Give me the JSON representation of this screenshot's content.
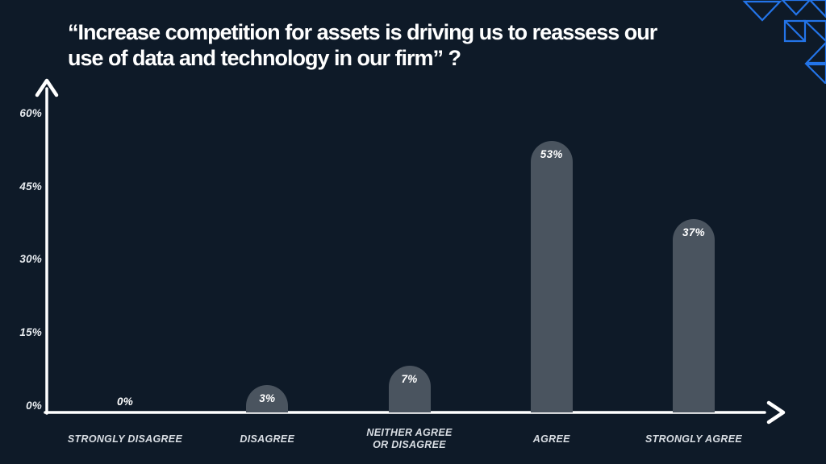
{
  "page": {
    "background_color": "#0e1a28",
    "accent_blue": "#2374e8"
  },
  "header": {
    "title_lines": [
      "“Increase competition for assets is driving us to reassess our",
      "use of data and technology in our firm” ?"
    ]
  },
  "decoration": {
    "description": "blue outlined triangle mosaic, top-right corner",
    "color": "#2374e8"
  },
  "chart_data": {
    "type": "bar",
    "title": "“Increase competition for assets is driving us to reassess our use of data and technology in our firm” ?",
    "categories": [
      "STRONGLY DISAGREE",
      "DISAGREE",
      "NEITHER AGREE OR DISAGREE",
      "AGREE",
      "STRONGLY AGREE"
    ],
    "category_lines": [
      [
        "STRONGLY DISAGREE"
      ],
      [
        "DISAGREE"
      ],
      [
        "NEITHER AGREE",
        "OR DISAGREE"
      ],
      [
        "AGREE"
      ],
      [
        "STRONGLY AGREE"
      ]
    ],
    "values": [
      0,
      3,
      7,
      53,
      37
    ],
    "value_labels": [
      "0%",
      "3%",
      "7%",
      "53%",
      "37%"
    ],
    "yticks": [
      {
        "label": "60%",
        "value": 60
      },
      {
        "label": "45%",
        "value": 45
      },
      {
        "label": "30%",
        "value": 30
      },
      {
        "label": "15%",
        "value": 15
      },
      {
        "label": "0%",
        "value": 0
      }
    ],
    "ylim": [
      0,
      60
    ],
    "xlabel": "",
    "ylabel": "",
    "grid": false,
    "legend": null,
    "bar_color": "#4a545f",
    "axis_color": "#ffffff",
    "value_label_color": "#ffffff",
    "tick_label_color": "#e8ecf0",
    "category_label_color": "#d9dee4"
  }
}
